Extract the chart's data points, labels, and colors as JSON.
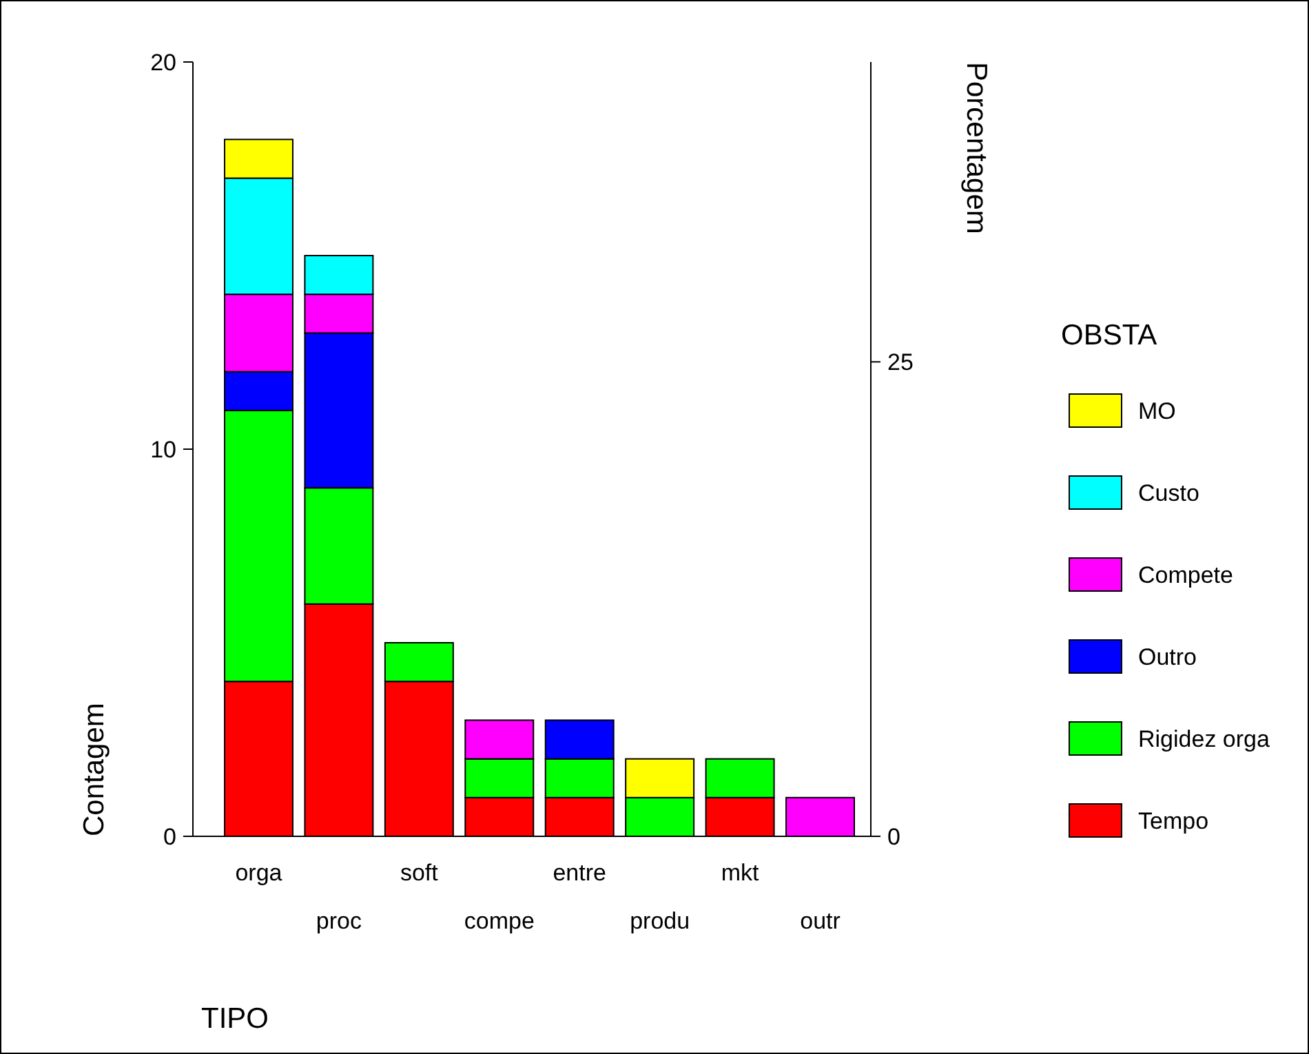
{
  "chart_data": {
    "type": "bar",
    "stacked": true,
    "xlabel": "TIPO",
    "ylabel": "Contagem",
    "y2label": "Porcentagem",
    "legend_title": "OBSTA",
    "legend": "right",
    "categories": [
      "orga",
      "proc",
      "soft",
      "compe",
      "entre",
      "produ",
      "mkt",
      "outr"
    ],
    "series": [
      {
        "name": "Tempo",
        "color": "#ff0000",
        "values": [
          4,
          6,
          4,
          1,
          1,
          0,
          1,
          0
        ]
      },
      {
        "name": "Rigidez orga",
        "color": "#00ff00",
        "values": [
          7,
          3,
          1,
          1,
          1,
          1,
          1,
          0
        ]
      },
      {
        "name": "Outro",
        "color": "#0000ff",
        "values": [
          1,
          4,
          0,
          0,
          1,
          0,
          0,
          0
        ]
      },
      {
        "name": "Compete",
        "color": "#ff00ff",
        "values": [
          2,
          1,
          0,
          1,
          0,
          0,
          0,
          1
        ]
      },
      {
        "name": "Custo",
        "color": "#00ffff",
        "values": [
          3,
          1,
          0,
          0,
          0,
          0,
          0,
          0
        ]
      },
      {
        "name": "MO",
        "color": "#ffff00",
        "values": [
          1,
          0,
          0,
          0,
          0,
          1,
          0,
          0
        ]
      }
    ],
    "ylim": [
      0,
      20
    ],
    "yticks": [
      0,
      10,
      20
    ],
    "y2lim": [
      0,
      40.8
    ],
    "y2ticks": [
      0,
      25
    ]
  }
}
